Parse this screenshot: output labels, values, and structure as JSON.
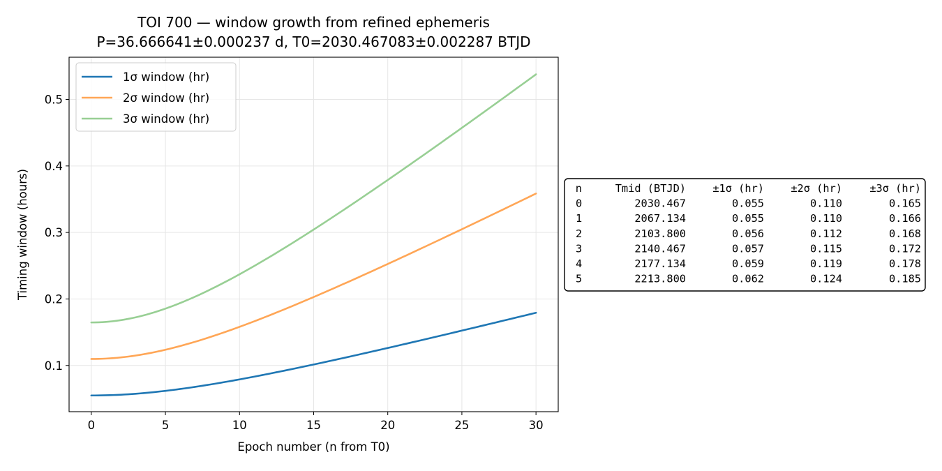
{
  "chart_data": {
    "type": "line",
    "title": "TOI 700 — window growth from refined ephemeris",
    "subtitle": "P=36.666641±0.000237 d, T0=2030.467083±0.002287 BTJD",
    "xlabel": "Epoch number (n from T0)",
    "ylabel": "Timing window (hours)",
    "xlim": [
      -1.5,
      31.5
    ],
    "ylim": [
      0.0305,
      0.5635
    ],
    "xticks": [
      0,
      5,
      10,
      15,
      20,
      25,
      30
    ],
    "xtick_labels": [
      "0",
      "5",
      "10",
      "15",
      "20",
      "25",
      "30"
    ],
    "yticks": [
      0.1,
      0.2,
      0.3,
      0.4,
      0.5
    ],
    "ytick_labels": [
      "0.1",
      "0.2",
      "0.3",
      "0.4",
      "0.5"
    ],
    "grid": true,
    "legend_position": "upper-left",
    "model": {
      "P_sigma_days": 0.000237,
      "T0_sigma_days": 0.002287,
      "n_range": [
        0,
        30
      ]
    },
    "series": [
      {
        "name": "1σ window (hr)",
        "multiplier": 1,
        "color": "#1f77b4",
        "points": [
          [
            0,
            0.055
          ],
          [
            5,
            0.062
          ],
          [
            10,
            0.079
          ],
          [
            15,
            0.101
          ],
          [
            20,
            0.126
          ],
          [
            25,
            0.152
          ],
          [
            30,
            0.179
          ]
        ]
      },
      {
        "name": "2σ window (hr)",
        "multiplier": 2,
        "color": "#ffa656",
        "points": [
          [
            0,
            0.11
          ],
          [
            5,
            0.124
          ],
          [
            10,
            0.158
          ],
          [
            15,
            0.202
          ],
          [
            20,
            0.252
          ],
          [
            25,
            0.304
          ],
          [
            30,
            0.358
          ]
        ]
      },
      {
        "name": "3σ window (hr)",
        "multiplier": 3,
        "color": "#98cf94",
        "points": [
          [
            0,
            0.165
          ],
          [
            5,
            0.185
          ],
          [
            10,
            0.236
          ],
          [
            15,
            0.302
          ],
          [
            20,
            0.377
          ],
          [
            25,
            0.457
          ],
          [
            30,
            0.538
          ]
        ]
      }
    ]
  },
  "table": {
    "columns": [
      "n",
      "Tmid (BTJD)",
      "±1σ (hr)",
      "±2σ (hr)",
      "±3σ (hr)"
    ],
    "rows": [
      [
        "0",
        "2030.467",
        "0.055",
        "0.110",
        "0.165"
      ],
      [
        "1",
        "2067.134",
        "0.055",
        "0.110",
        "0.166"
      ],
      [
        "2",
        "2103.800",
        "0.056",
        "0.112",
        "0.168"
      ],
      [
        "3",
        "2140.467",
        "0.057",
        "0.115",
        "0.172"
      ],
      [
        "4",
        "2177.134",
        "0.059",
        "0.119",
        "0.178"
      ],
      [
        "5",
        "2213.800",
        "0.062",
        "0.124",
        "0.185"
      ]
    ]
  }
}
